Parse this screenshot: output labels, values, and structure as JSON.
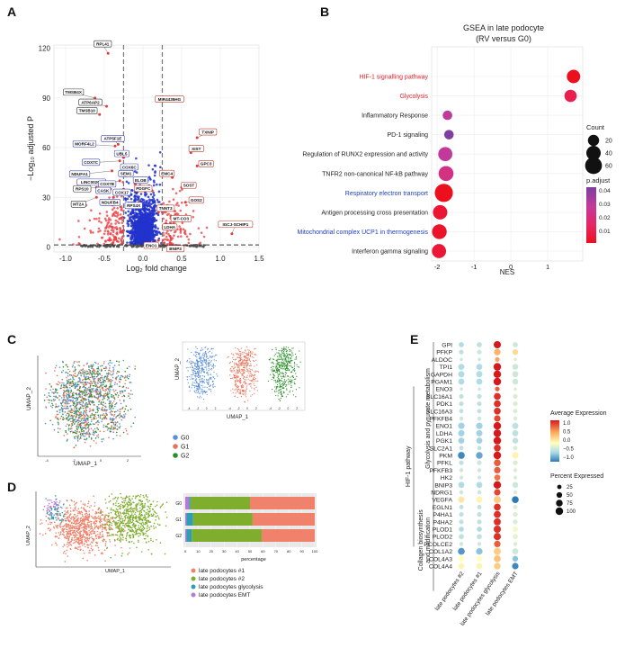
{
  "panel_labels": [
    "A",
    "B",
    "C",
    "D",
    "E"
  ],
  "chart_data": [
    {
      "panel": "A",
      "type": "scatter",
      "title": "",
      "xlabel": "Log₂ fold change",
      "ylabel": "−Log₁₀ adjusted P",
      "xlim": [
        -1.15,
        1.5
      ],
      "ylim": [
        -3,
        122
      ],
      "xticks": [
        "-1.0",
        "-0.5",
        "0.0",
        "0.5",
        "1.0",
        "1.5"
      ],
      "yticks": [
        "0",
        "30",
        "60",
        "90",
        "120"
      ],
      "thresholds": {
        "x": [
          -0.25,
          0.25
        ],
        "y": 1.3
      },
      "labeled_genes": [
        {
          "gene": "RPL41",
          "x": -0.45,
          "y": 117,
          "dir": "down"
        },
        {
          "gene": "TMSB4X",
          "x": -0.62,
          "y": 90,
          "dir": "down"
        },
        {
          "gene": "ATP6AP2",
          "x": -0.47,
          "y": 85,
          "dir": "down"
        },
        {
          "gene": "TMSB10",
          "x": -0.56,
          "y": 80,
          "dir": "down"
        },
        {
          "gene": "MIR4435HG",
          "x": 0.25,
          "y": 88,
          "dir": "up"
        },
        {
          "gene": "TXNIP",
          "x": 0.7,
          "y": 66,
          "dir": "up"
        },
        {
          "gene": "XIST",
          "x": 0.62,
          "y": 57,
          "dir": "up"
        },
        {
          "gene": "GPC3",
          "x": 0.7,
          "y": 49,
          "dir": "up"
        },
        {
          "gene": "MORF4L2",
          "x": -0.36,
          "y": 61,
          "dir": "down"
        },
        {
          "gene": "ATP5F1E",
          "x": -0.32,
          "y": 62,
          "dir": "down"
        },
        {
          "gene": "UBL5",
          "x": -0.25,
          "y": 54,
          "dir": "down"
        },
        {
          "gene": "COX7C",
          "x": -0.3,
          "y": 52,
          "dir": "down"
        },
        {
          "gene": "COX6C",
          "x": -0.2,
          "y": 47,
          "dir": "down"
        },
        {
          "gene": "NDUFA1",
          "x": -0.4,
          "y": 46,
          "dir": "down"
        },
        {
          "gene": "SEM1",
          "x": -0.22,
          "y": 43,
          "dir": "down"
        },
        {
          "gene": "LINC00202",
          "x": -0.55,
          "y": 40,
          "dir": "down"
        },
        {
          "gene": "COX7B",
          "x": -0.3,
          "y": 40,
          "dir": "down"
        },
        {
          "gene": "RPS10",
          "x": -0.6,
          "y": 36,
          "dir": "down"
        },
        {
          "gene": "CASK",
          "x": -0.42,
          "y": 35,
          "dir": "down"
        },
        {
          "gene": "COX17",
          "x": -0.25,
          "y": 35,
          "dir": "down"
        },
        {
          "gene": "ELOB",
          "x": -0.1,
          "y": 38,
          "dir": "down"
        },
        {
          "gene": "EMC4",
          "x": 0.38,
          "y": 42,
          "dir": "up"
        },
        {
          "gene": "MT2A",
          "x": -0.6,
          "y": 30,
          "dir": "down"
        },
        {
          "gene": "NDUFB4",
          "x": -0.38,
          "y": 30,
          "dir": "down"
        },
        {
          "gene": "PDGFC",
          "x": 0.12,
          "y": 34,
          "dir": "up"
        },
        {
          "gene": "SOST",
          "x": 0.5,
          "y": 36,
          "dir": "up"
        },
        {
          "gene": "RPS4X",
          "x": -0.05,
          "y": 27,
          "dir": "down"
        },
        {
          "gene": "GOS2",
          "x": 0.55,
          "y": 27,
          "dir": "up"
        },
        {
          "gene": "TNNT3",
          "x": 0.2,
          "y": 21,
          "dir": "up"
        },
        {
          "gene": "MT-CO3",
          "x": 0.4,
          "y": 18,
          "dir": "up"
        },
        {
          "gene": "LDHA",
          "x": 0.3,
          "y": 14,
          "dir": "up"
        },
        {
          "gene": "IGCJ-SCHIP1",
          "x": 1.15,
          "y": 8,
          "dir": "up"
        },
        {
          "gene": "ENO1",
          "x": 0.2,
          "y": 4,
          "dir": "up"
        },
        {
          "gene": "BNIP3",
          "x": 0.35,
          "y": 2,
          "dir": "up"
        }
      ]
    },
    {
      "panel": "B",
      "type": "scatter",
      "title": "GSEA in late podocyte",
      "subtitle": "(RV versus G0)",
      "xlabel": "NES",
      "xlim": [
        -2.15,
        1.95
      ],
      "xticks": [
        "-2",
        "-1",
        "0",
        "1"
      ],
      "pathways": [
        {
          "name": "HIF-1 signalling pathway",
          "nes": 1.7,
          "count": 33,
          "padj": 0.003,
          "color": "#e8202a"
        },
        {
          "name": "Glycolysis",
          "nes": 1.62,
          "count": 26,
          "padj": 0.015,
          "color": "#e8202a"
        },
        {
          "name": "Inflammatory Response",
          "nes": -1.72,
          "count": 12,
          "padj": 0.036,
          "color": "#222222"
        },
        {
          "name": "PD-1 signaling",
          "nes": -1.68,
          "count": 12,
          "padj": 0.049,
          "color": "#222222"
        },
        {
          "name": "Regulation of RUNX2 expression and activity",
          "nes": -1.78,
          "count": 38,
          "padj": 0.035,
          "color": "#222222"
        },
        {
          "name": "TNFR2 non-canonical NF-kB pathway",
          "nes": -1.76,
          "count": 44,
          "padj": 0.028,
          "color": "#222222"
        },
        {
          "name": "Respiratory electron transport",
          "nes": -1.82,
          "count": 72,
          "padj": 0.003,
          "color": "#1f3fbf"
        },
        {
          "name": "Antigen processing cross presentation",
          "nes": -1.92,
          "count": 40,
          "padj": 0.008,
          "color": "#222222"
        },
        {
          "name": "Mitochondrial complex UCP1 in thermogenesis",
          "nes": -1.94,
          "count": 42,
          "padj": 0.006,
          "color": "#1f3fbf"
        },
        {
          "name": "Interferon gamma signaling",
          "nes": -1.95,
          "count": 38,
          "padj": 0.009,
          "color": "#222222"
        }
      ],
      "legend": {
        "count_title": "Count",
        "count_values": [
          20,
          40,
          60
        ],
        "padj_title": "p.adjust",
        "padj_ticks": [
          "0.04",
          "0.03",
          "0.02",
          "0.01"
        ]
      }
    },
    {
      "panel": "C",
      "type": "scatter",
      "xlabel": "UMAP_1",
      "ylabel": "UMAP_2",
      "groups": [
        {
          "name": "G0",
          "color": "#5b8fd6"
        },
        {
          "name": "G1",
          "color": "#e8735a"
        },
        {
          "name": "G2",
          "color": "#2a8f2a"
        }
      ],
      "ticks": [
        "-4",
        "-2",
        "0",
        "2"
      ]
    },
    {
      "panel": "D",
      "type": "bar",
      "xlabel": "percentage",
      "xticks": [
        "0",
        "10",
        "20",
        "30",
        "40",
        "50",
        "60",
        "70",
        "80",
        "90",
        "100"
      ],
      "categories": [
        "G0",
        "G1",
        "G2"
      ],
      "series": [
        {
          "name": "late podocytes EMT",
          "color": "#b57ad8",
          "values": [
            3,
            1,
            1
          ]
        },
        {
          "name": "late podocytes glycolysis",
          "color": "#2c9fb5",
          "values": [
            1,
            5,
            4
          ]
        },
        {
          "name": "late podocytes #2",
          "color": "#7fae2e",
          "values": [
            46,
            46,
            54
          ]
        },
        {
          "name": "late podocytes #1",
          "color": "#f0816a",
          "values": [
            50,
            48,
            41
          ]
        }
      ],
      "umap_xlabel": "UMAP_1",
      "umap_ylabel": "UMAP_2",
      "legend": [
        "late podocytes #1",
        "late podocytes #2",
        "late podocytes glycolysis",
        "late podocytes EMT"
      ]
    },
    {
      "panel": "E",
      "type": "heatmap",
      "xlabels": [
        "late podocytes #2",
        "late podocytes #1",
        "late podocytes glycolysis",
        "late podocytes EMT"
      ],
      "groups": [
        {
          "name": "Glycolysis and pyruvate metabolism",
          "from": 0,
          "to": 20
        },
        {
          "name": "HIF-1 pathway",
          "from": 6,
          "to": 27
        },
        {
          "name": "Collagen biosynthesis and modification",
          "from": 20,
          "to": 33
        }
      ],
      "genes": [
        "GPI",
        "PFKP",
        "ALDOC",
        "TPI1",
        "GAPDH",
        "PGAM1",
        "ENO3",
        "SLC16A1",
        "PDK1",
        "SLC16A3",
        "PFKFB4",
        "ENO1",
        "LDHA",
        "PGK1",
        "SLC2A1",
        "PKM",
        "PFKL",
        "PFKFB3",
        "HK2",
        "BNIP3",
        "NDRG1",
        "VEGFA",
        "EGLN1",
        "P4HA1",
        "P4HA2",
        "PLOD1",
        "PLOD2",
        "PCOLCE2",
        "COL1A2",
        "COL4A3",
        "COL4A4"
      ],
      "avg_expression": [
        [
          -0.4,
          -0.3,
          1.5,
          -0.2
        ],
        [
          -0.3,
          -0.2,
          0.8,
          0.5
        ],
        [
          -0.2,
          -0.2,
          0.9,
          -0.1
        ],
        [
          -0.4,
          -0.4,
          1.5,
          -0.2
        ],
        [
          -0.4,
          -0.4,
          1.5,
          -0.2
        ],
        [
          -0.4,
          -0.4,
          1.5,
          -0.2
        ],
        [
          -0.2,
          -0.2,
          1.2,
          -0.1
        ],
        [
          -0.3,
          -0.3,
          1.4,
          -0.1
        ],
        [
          -0.3,
          -0.3,
          1.4,
          -0.1
        ],
        [
          -0.3,
          -0.3,
          1.4,
          -0.1
        ],
        [
          -0.2,
          -0.2,
          1.3,
          -0.1
        ],
        [
          -0.5,
          -0.5,
          1.5,
          -0.3
        ],
        [
          -0.5,
          -0.5,
          1.5,
          -0.3
        ],
        [
          -0.5,
          -0.5,
          1.5,
          -0.3
        ],
        [
          -0.3,
          -0.3,
          1.4,
          -0.1
        ],
        [
          -1.0,
          -0.8,
          1.5,
          0.3
        ],
        [
          -0.3,
          -0.2,
          1.2,
          -0.1
        ],
        [
          -0.2,
          -0.2,
          1.2,
          -0.1
        ],
        [
          -0.2,
          -0.2,
          1.1,
          -0.1
        ],
        [
          -0.4,
          -0.4,
          1.5,
          -0.2
        ],
        [
          -0.2,
          -0.2,
          1.3,
          -0.1
        ],
        [
          0.4,
          0.3,
          0.6,
          -1.1
        ],
        [
          -0.3,
          -0.3,
          1.4,
          -0.1
        ],
        [
          -0.3,
          -0.3,
          1.4,
          -0.1
        ],
        [
          -0.3,
          -0.3,
          1.4,
          -0.1
        ],
        [
          -0.4,
          -0.4,
          1.4,
          0.1
        ],
        [
          -0.3,
          -0.3,
          1.4,
          0.0
        ],
        [
          -0.2,
          -0.2,
          1.2,
          -0.1
        ],
        [
          -0.9,
          -0.6,
          0.6,
          -0.2
        ],
        [
          0.2,
          0.2,
          0.7,
          -0.6
        ],
        [
          0.3,
          0.3,
          0.6,
          -1.0
        ]
      ],
      "pct_expressed": [
        [
          40,
          40,
          90,
          40
        ],
        [
          30,
          30,
          70,
          50
        ],
        [
          10,
          10,
          30,
          10
        ],
        [
          60,
          60,
          100,
          55
        ],
        [
          65,
          65,
          100,
          60
        ],
        [
          60,
          60,
          100,
          55
        ],
        [
          10,
          10,
          30,
          10
        ],
        [
          30,
          30,
          80,
          30
        ],
        [
          30,
          30,
          80,
          30
        ],
        [
          25,
          25,
          80,
          25
        ],
        [
          20,
          20,
          70,
          20
        ],
        [
          70,
          70,
          100,
          65
        ],
        [
          65,
          65,
          100,
          60
        ],
        [
          60,
          60,
          100,
          55
        ],
        [
          25,
          25,
          80,
          25
        ],
        [
          80,
          75,
          100,
          70
        ],
        [
          30,
          30,
          80,
          30
        ],
        [
          20,
          20,
          70,
          20
        ],
        [
          15,
          15,
          60,
          15
        ],
        [
          60,
          60,
          100,
          55
        ],
        [
          20,
          20,
          70,
          20
        ],
        [
          60,
          60,
          90,
          80
        ],
        [
          25,
          25,
          80,
          25
        ],
        [
          30,
          30,
          85,
          30
        ],
        [
          30,
          30,
          85,
          30
        ],
        [
          40,
          40,
          90,
          40
        ],
        [
          40,
          40,
          90,
          40
        ],
        [
          20,
          20,
          70,
          20
        ],
        [
          80,
          70,
          90,
          60
        ],
        [
          50,
          50,
          80,
          50
        ],
        [
          55,
          55,
          75,
          70
        ]
      ],
      "legend": {
        "avg_title": "Average Expression",
        "avg_ticks": [
          "1.0",
          "0.5",
          "0.0",
          "−0.5",
          "−1.0"
        ],
        "pct_title": "Percent Expressed",
        "pct_values": [
          "25",
          "50",
          "75",
          "100"
        ]
      }
    }
  ]
}
